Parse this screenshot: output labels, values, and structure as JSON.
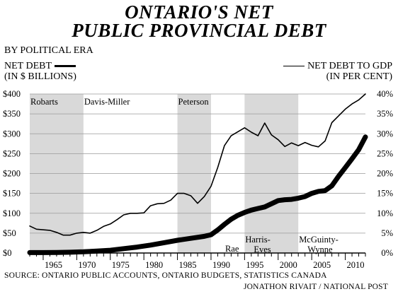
{
  "page": {
    "title_line1": "ONTARIO'S NET",
    "title_line2": "PUBLIC PROVINCIAL DEBT",
    "subtitle": "BY POLITICAL ERA",
    "left_label_line1": "NET DEBT",
    "left_label_line2": "(IN $ BILLIONS)",
    "right_label_line1": "NET DEBT TO GDP",
    "right_label_line2": "(IN PER CENT)",
    "source": "SOURCE: ONTARIO PUBLIC ACCOUNTS, ONTARIO BUDGETS, STATISTICS CANADA",
    "credit": "JONATHON RIVAIT / NATIONAL POST"
  },
  "chart_data": {
    "type": "line",
    "x_range": [
      1963,
      2013
    ],
    "x_ticks": [
      "1965",
      "1970",
      "1975",
      "1980",
      "1985",
      "1990",
      "1995",
      "2000",
      "2005",
      "2010"
    ],
    "y_left": {
      "range": [
        0,
        400
      ],
      "ticks": [
        "$0",
        "$50",
        "$100",
        "$150",
        "$200",
        "$250",
        "$300",
        "$350",
        "$400"
      ]
    },
    "y_right": {
      "range": [
        0,
        40
      ],
      "ticks": [
        "0%",
        "5%",
        "10%",
        "15%",
        "20%",
        "25%",
        "30%",
        "35%",
        "40%"
      ]
    },
    "eras": [
      {
        "name": "Robarts",
        "start": 1963,
        "end": 1971,
        "shaded": true
      },
      {
        "name": "Davis-Miller",
        "start": 1971,
        "end": 1985,
        "shaded": false
      },
      {
        "name": "Peterson",
        "start": 1985,
        "end": 1990,
        "shaded": true
      },
      {
        "name": "Rae",
        "start": 1990,
        "end": 1995,
        "shaded": false
      },
      {
        "name": "Harris-",
        "name_line2": "Eves",
        "start": 1995,
        "end": 2003,
        "shaded": true
      },
      {
        "name": "McGuinty-",
        "name_line2": "Wynne",
        "start": 2003,
        "end": 2013,
        "shaded": false
      }
    ],
    "series": [
      {
        "name": "NET DEBT",
        "axis": "left",
        "style": "thick",
        "x": [
          1963,
          1965,
          1967,
          1969,
          1971,
          1973,
          1975,
          1977,
          1979,
          1981,
          1983,
          1985,
          1987,
          1989,
          1990,
          1991,
          1992,
          1993,
          1994,
          1995,
          1996,
          1997,
          1998,
          1999,
          2000,
          2001,
          2002,
          2003,
          2004,
          2005,
          2006,
          2007,
          2008,
          2009,
          2010,
          2011,
          2012,
          2013
        ],
        "values": [
          1,
          1,
          1.5,
          2,
          3,
          5,
          7,
          11,
          15,
          20,
          26,
          32,
          37,
          42,
          46,
          58,
          72,
          85,
          95,
          102,
          108,
          112,
          116,
          124,
          132,
          134,
          135,
          138,
          142,
          150,
          155,
          157,
          169,
          193,
          215,
          237,
          260,
          292
        ]
      },
      {
        "name": "NET DEBT TO GDP",
        "axis": "right",
        "style": "thin",
        "x": [
          1963,
          1964,
          1966,
          1967,
          1968,
          1969,
          1970,
          1971,
          1972,
          1973,
          1974,
          1975,
          1976,
          1977,
          1978,
          1979,
          1980,
          1981,
          1982,
          1983,
          1984,
          1985,
          1986,
          1987,
          1988,
          1989,
          1990,
          1991,
          1992,
          1993,
          1994,
          1995,
          1996,
          1997,
          1998,
          1999,
          2000,
          2001,
          2002,
          2003,
          2004,
          2005,
          2006,
          2007,
          2008,
          2009,
          2010,
          2011,
          2012,
          2013
        ],
        "values": [
          6.8,
          6.0,
          5.7,
          5.2,
          4.5,
          4.5,
          5.0,
          5.2,
          5.0,
          5.7,
          6.7,
          7.3,
          8.4,
          9.6,
          10.0,
          10.0,
          10.1,
          11.9,
          12.4,
          12.5,
          13.3,
          15.0,
          15.0,
          14.4,
          12.5,
          14.2,
          16.8,
          21.5,
          27.0,
          29.5,
          30.5,
          31.5,
          30.4,
          29.5,
          32.7,
          29.7,
          28.5,
          26.8,
          27.7,
          27.0,
          27.8,
          27.1,
          26.7,
          28.2,
          32.8,
          34.5,
          36.2,
          37.5,
          38.5,
          40.0
        ]
      }
    ]
  }
}
